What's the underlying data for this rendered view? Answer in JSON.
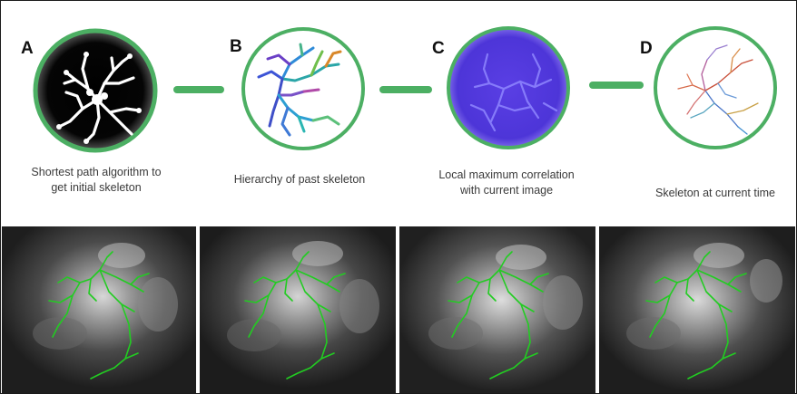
{
  "stages": [
    {
      "letter": "A",
      "caption_lines": [
        "Shortest path algorithm to",
        "get initial skeleton"
      ],
      "icon": "binary-skeleton-icon"
    },
    {
      "letter": "B",
      "caption_lines": [
        "Hierarchy of past skeleton"
      ],
      "icon": "hierarchy-tree-icon"
    },
    {
      "letter": "C",
      "caption_lines": [
        "Local maximum correlation",
        "with current image"
      ],
      "icon": "correlation-map-icon"
    },
    {
      "letter": "D",
      "caption_lines": [
        "Skeleton at current time"
      ],
      "icon": "current-skeleton-icon"
    }
  ],
  "colors": {
    "ring": "#4caf63",
    "connector": "#4caf63",
    "overlay": "#22cc22",
    "correlation_fill": "#5b3ee0"
  },
  "panels": [
    {
      "name": "frame-1"
    },
    {
      "name": "frame-2"
    },
    {
      "name": "frame-3"
    },
    {
      "name": "frame-4"
    }
  ]
}
